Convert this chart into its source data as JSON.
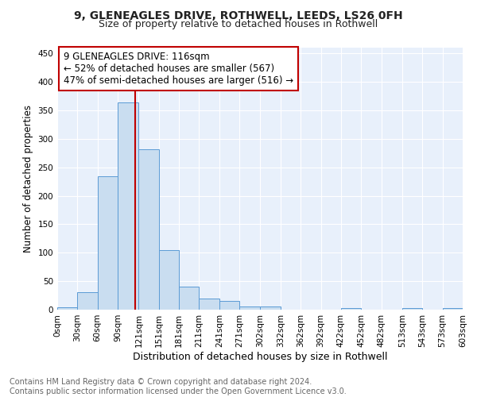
{
  "title1": "9, GLENEAGLES DRIVE, ROTHWELL, LEEDS, LS26 0FH",
  "title2": "Size of property relative to detached houses in Rothwell",
  "xlabel": "Distribution of detached houses by size in Rothwell",
  "ylabel": "Number of detached properties",
  "bin_edges": [
    0,
    30,
    60,
    90,
    121,
    151,
    181,
    211,
    241,
    271,
    302,
    332,
    362,
    392,
    422,
    452,
    482,
    513,
    543,
    573,
    603
  ],
  "bin_counts": [
    4,
    31,
    234,
    364,
    281,
    105,
    41,
    20,
    15,
    6,
    5,
    0,
    0,
    0,
    3,
    0,
    0,
    3,
    0,
    3
  ],
  "bar_facecolor": "#c9ddf0",
  "bar_edgecolor": "#5b9bd5",
  "vline_x": 116,
  "vline_color": "#c00000",
  "annotation_line1": "9 GLENEAGLES DRIVE: 116sqm",
  "annotation_line2": "← 52% of detached houses are smaller (567)",
  "annotation_line3": "47% of semi-detached houses are larger (516) →",
  "annotation_box_edgecolor": "#c00000",
  "annotation_box_facecolor": "#ffffff",
  "annotation_fontsize": 8.5,
  "tick_labels": [
    "0sqm",
    "30sqm",
    "60sqm",
    "90sqm",
    "121sqm",
    "151sqm",
    "181sqm",
    "211sqm",
    "241sqm",
    "271sqm",
    "302sqm",
    "332sqm",
    "362sqm",
    "392sqm",
    "422sqm",
    "452sqm",
    "482sqm",
    "513sqm",
    "543sqm",
    "573sqm",
    "603sqm"
  ],
  "yticks": [
    0,
    50,
    100,
    150,
    200,
    250,
    300,
    350,
    400,
    450
  ],
  "ylim": [
    0,
    460
  ],
  "plot_bg_color": "#e8f0fb",
  "footer_text": "Contains HM Land Registry data © Crown copyright and database right 2024.\nContains public sector information licensed under the Open Government Licence v3.0.",
  "grid_color": "#ffffff",
  "title1_fontsize": 10,
  "title2_fontsize": 9,
  "xlabel_fontsize": 9,
  "ylabel_fontsize": 8.5,
  "footer_fontsize": 7,
  "tick_fontsize": 7.5
}
